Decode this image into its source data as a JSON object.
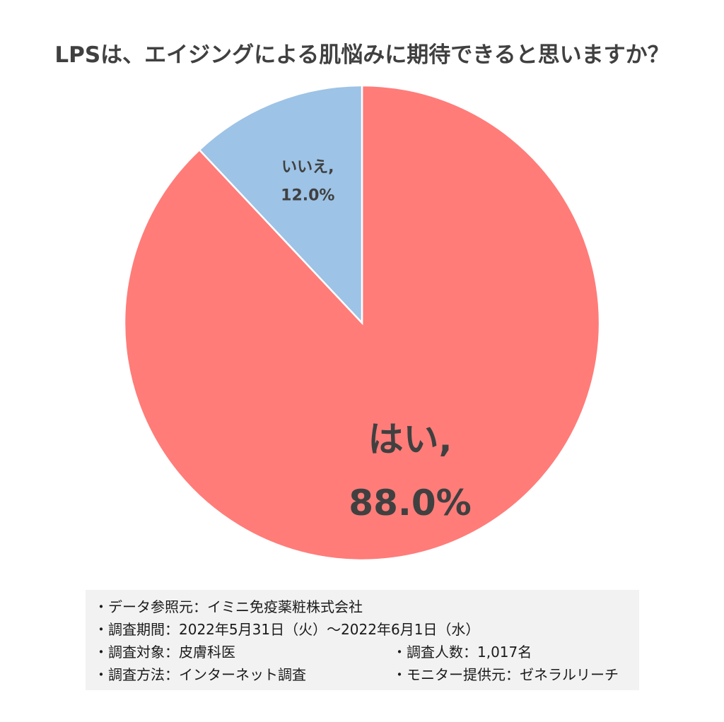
{
  "chart_data": {
    "type": "pie",
    "title": "LPSは、エイジングによる肌悩みに期待できると思いますか？",
    "slices": [
      {
        "label": "はい,",
        "value": 88.0,
        "value_label": "88.0%",
        "color": "#ff7c79"
      },
      {
        "label": "いいえ,",
        "value": 12.0,
        "value_label": "12.0%",
        "color": "#9dc3e6"
      }
    ],
    "start": "top",
    "direction": "clockwise"
  },
  "notes": {
    "source": "・データ参照元：イミニ免疫薬粧株式会社",
    "period": "・調査期間：2022年5月31日（火）～2022年6月1日（水）",
    "target": "・調査対象：皮膚科医",
    "respondents": "・調査人数：1,017名",
    "method": "・調査方法：インターネット調査",
    "provider": "・モニター提供元：ゼネラルリーチ"
  }
}
